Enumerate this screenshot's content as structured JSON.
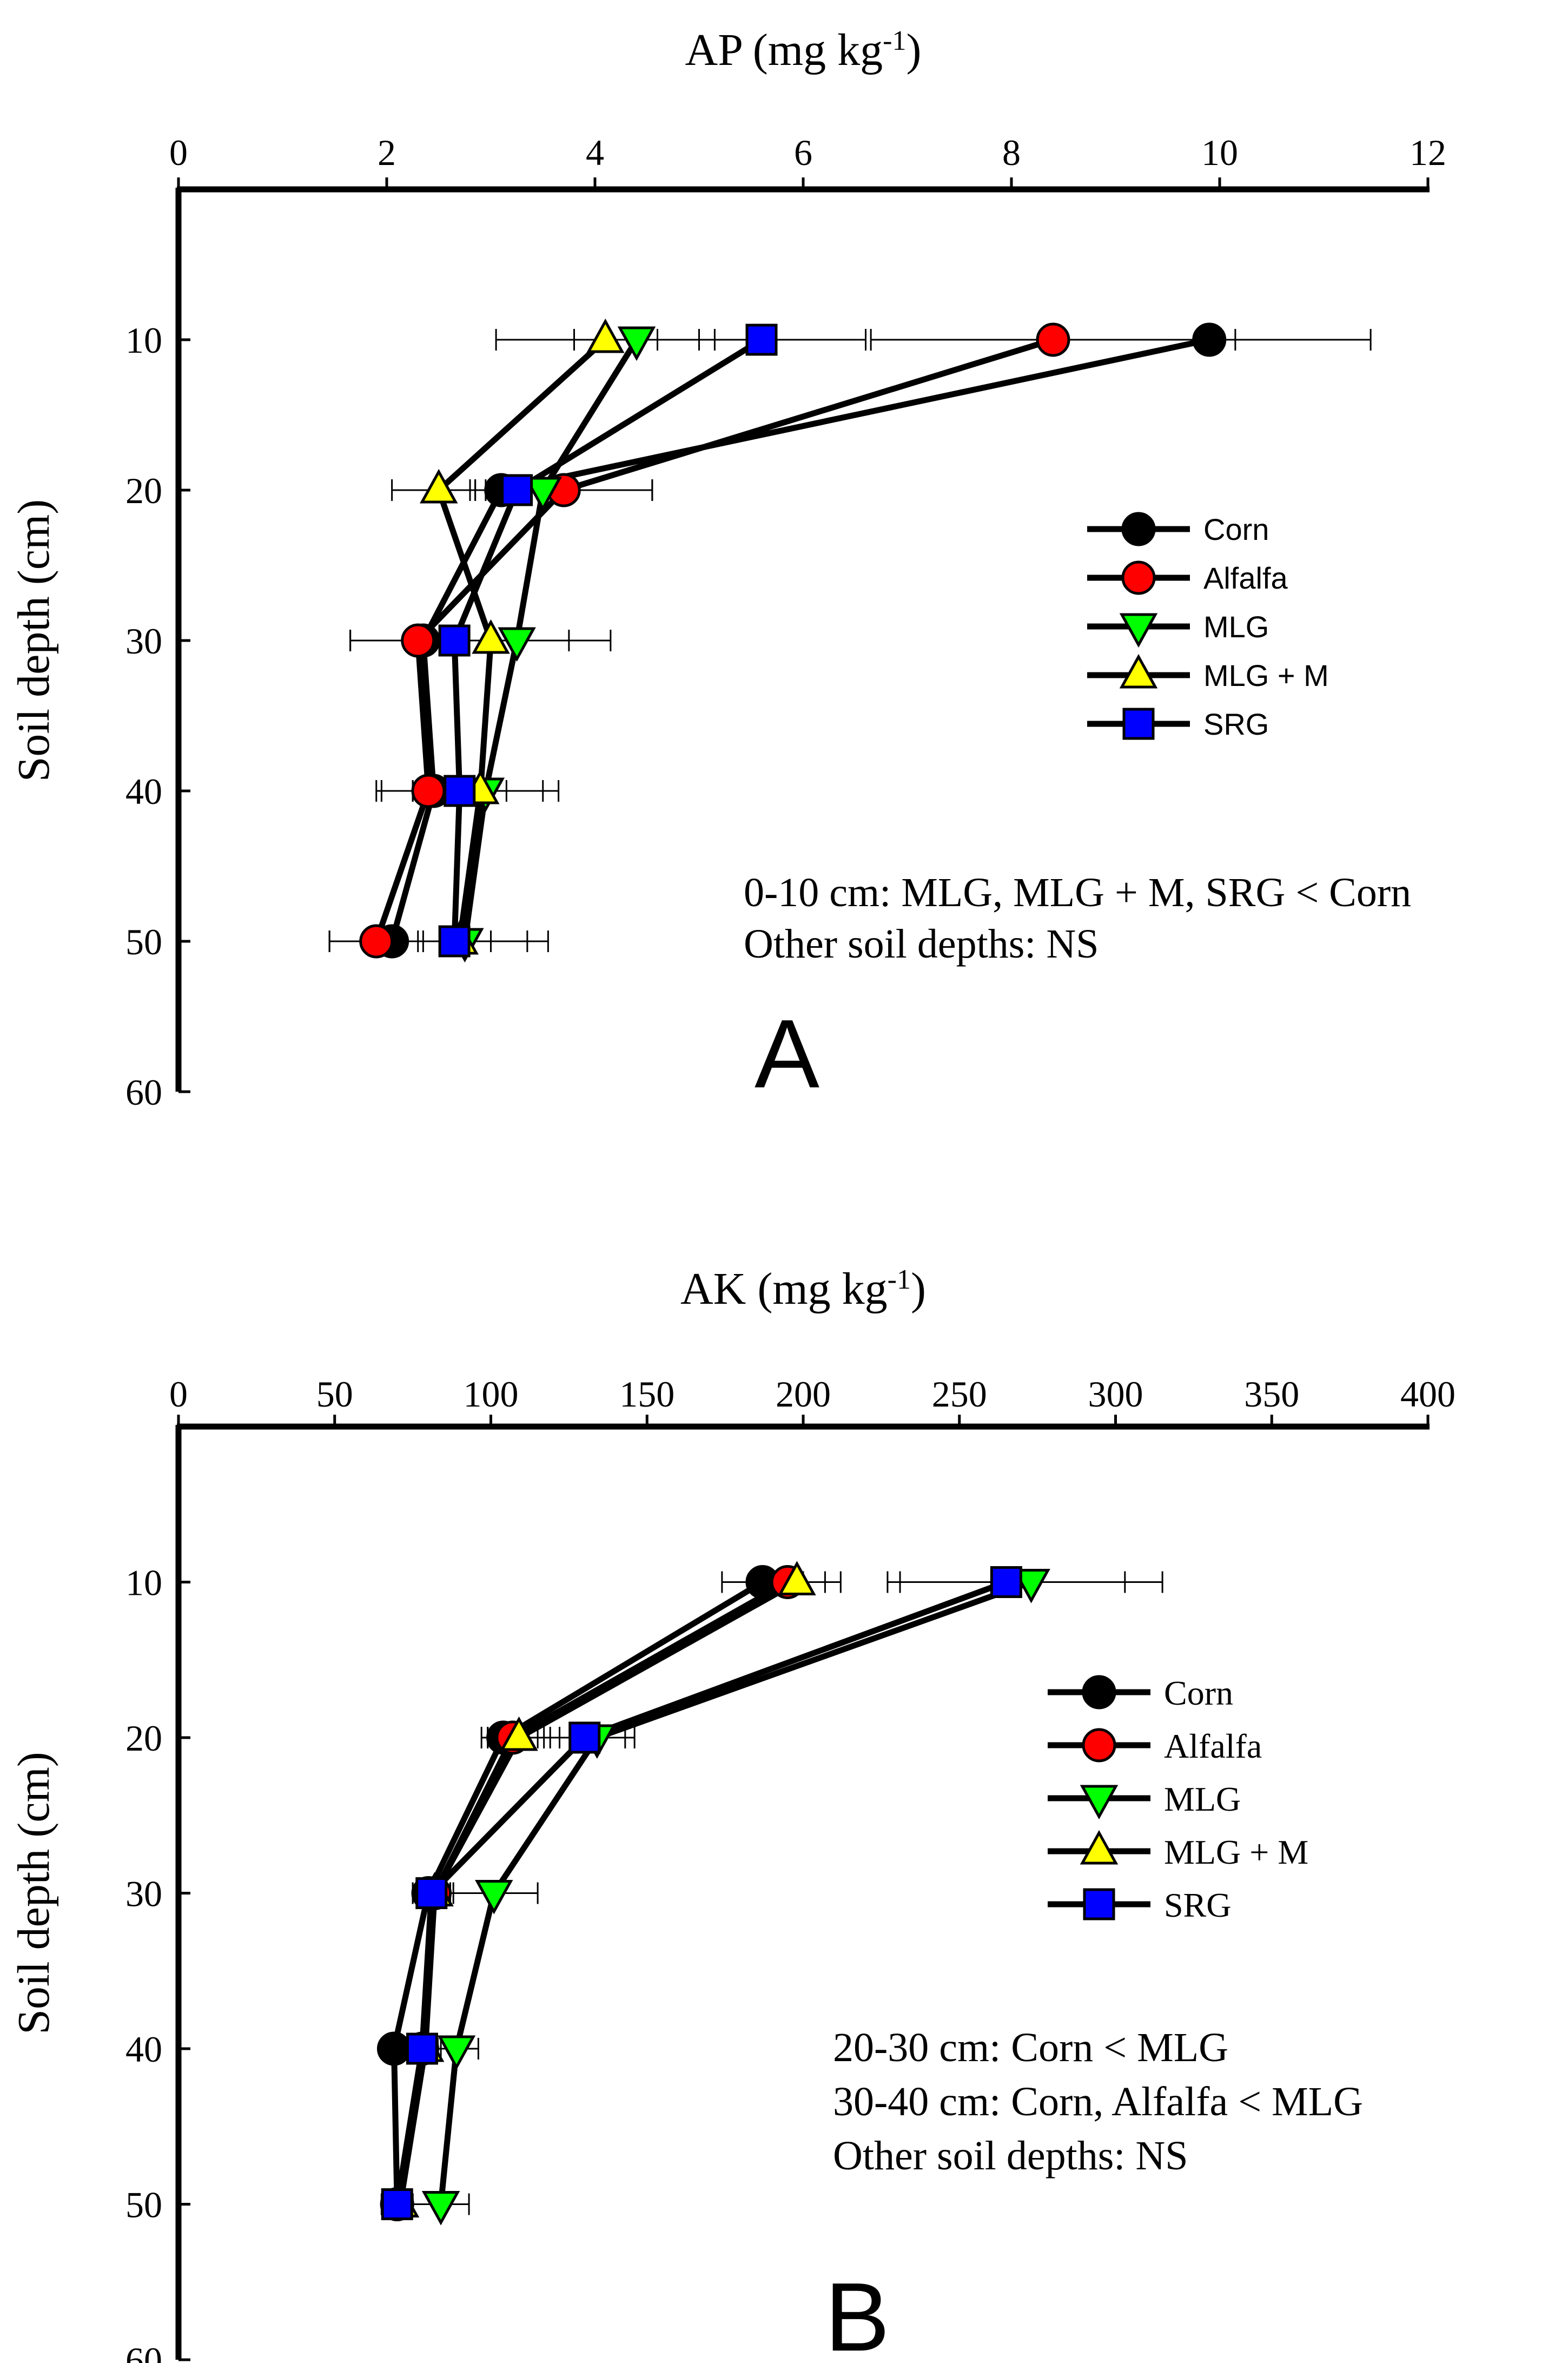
{
  "chart_data": [
    {
      "panel_label": "A",
      "type": "line",
      "orientation": "depth-profile",
      "title": "AP (mg kg-1)",
      "xlabel_main": "AP (mg kg",
      "xlabel_sup": "-1",
      "xlabel_end": ")",
      "ylabel": "Soil depth (cm)",
      "xlim": [
        0,
        12
      ],
      "ylim": [
        0,
        60
      ],
      "x_ticks": [
        "0",
        "2",
        "4",
        "6",
        "8",
        "10",
        "12"
      ],
      "x_tick_values": [
        0,
        2,
        4,
        6,
        8,
        10,
        12
      ],
      "y_ticks": [
        "10",
        "20",
        "30",
        "40",
        "50",
        "60"
      ],
      "y_tick_values": [
        10,
        20,
        30,
        40,
        50,
        60
      ],
      "depths": [
        10,
        20,
        30,
        40,
        50
      ],
      "series": [
        {
          "name": "Corn",
          "marker": "circle",
          "color": "#000000",
          "values": [
            9.9,
            3.1,
            2.35,
            2.45,
            2.05
          ],
          "errors": [
            1.55,
            0.25,
            0.7,
            0.5,
            0.6
          ]
        },
        {
          "name": "Alfalfa",
          "marker": "circle",
          "color": "#ff0000",
          "values": [
            8.4,
            3.7,
            2.3,
            2.4,
            1.9
          ],
          "errors": [
            1.75,
            0.85,
            0.65,
            0.5,
            0.45
          ]
        },
        {
          "name": "MLG",
          "marker": "triangle-down",
          "color": "#00ff00",
          "values": [
            4.4,
            3.5,
            3.25,
            2.95,
            2.75
          ],
          "errors": [
            0.6,
            1.05,
            0.9,
            0.7,
            0.8
          ]
        },
        {
          "name": "MLG + M",
          "marker": "triangle-up",
          "color": "#ffff00",
          "values": [
            4.1,
            2.5,
            3.0,
            2.9,
            2.7
          ],
          "errors": [
            1.05,
            0.45,
            0.75,
            0.6,
            0.65
          ]
        },
        {
          "name": "SRG",
          "marker": "square",
          "color": "#0000ff",
          "values": [
            5.6,
            3.25,
            2.65,
            2.7,
            2.65
          ],
          "errors": [
            1.0,
            0.45,
            0.35,
            0.45,
            0.35
          ]
        }
      ],
      "annotation_lines": [
        "0-10 cm: MLG, MLG + M, SRG < Corn",
        "Other soil depths: NS"
      ],
      "legend_position": "right-middle"
    },
    {
      "panel_label": "B",
      "type": "line",
      "orientation": "depth-profile",
      "title": "AK (mg kg-1)",
      "xlabel_main": "AK (mg kg",
      "xlabel_sup": "-1",
      "xlabel_end": ")",
      "ylabel": "Soil depth (cm)",
      "xlim": [
        0,
        400
      ],
      "ylim": [
        0,
        60
      ],
      "x_ticks": [
        "0",
        "50",
        "100",
        "150",
        "200",
        "250",
        "300",
        "350",
        "400"
      ],
      "x_tick_values": [
        0,
        50,
        100,
        150,
        200,
        250,
        300,
        350,
        400
      ],
      "y_ticks": [
        "10",
        "20",
        "30",
        "40",
        "50",
        "60"
      ],
      "y_tick_values": [
        10,
        20,
        30,
        40,
        50,
        60
      ],
      "depths": [
        10,
        20,
        30,
        40,
        50
      ],
      "series": [
        {
          "name": "Corn",
          "marker": "circle",
          "color": "#000000",
          "values": [
            187,
            104,
            80,
            69,
            70
          ],
          "errors": [
            13,
            7,
            5,
            4,
            4
          ]
        },
        {
          "name": "Alfalfa",
          "marker": "circle",
          "color": "#ff0000",
          "values": [
            195,
            107,
            82,
            78,
            70
          ],
          "errors": [
            12,
            8,
            5,
            5,
            4
          ]
        },
        {
          "name": "MLG",
          "marker": "triangle-down",
          "color": "#00ff00",
          "values": [
            273,
            134,
            101,
            89,
            84
          ],
          "errors": [
            42,
            12,
            14,
            7,
            9
          ]
        },
        {
          "name": "MLG + M",
          "marker": "triangle-up",
          "color": "#ffff00",
          "values": [
            198,
            109,
            82,
            79,
            71
          ],
          "errors": [
            14,
            10,
            6,
            5,
            4
          ]
        },
        {
          "name": "SRG",
          "marker": "square",
          "color": "#0000ff",
          "values": [
            265,
            130,
            81,
            78,
            70
          ],
          "errors": [
            38,
            13,
            6,
            5,
            5
          ]
        }
      ],
      "annotation_lines": [
        "20-30 cm: Corn < MLG",
        "30-40 cm: Corn, Alfalfa < MLG",
        "Other soil depths: NS"
      ],
      "legend_position": "right-middle"
    }
  ]
}
